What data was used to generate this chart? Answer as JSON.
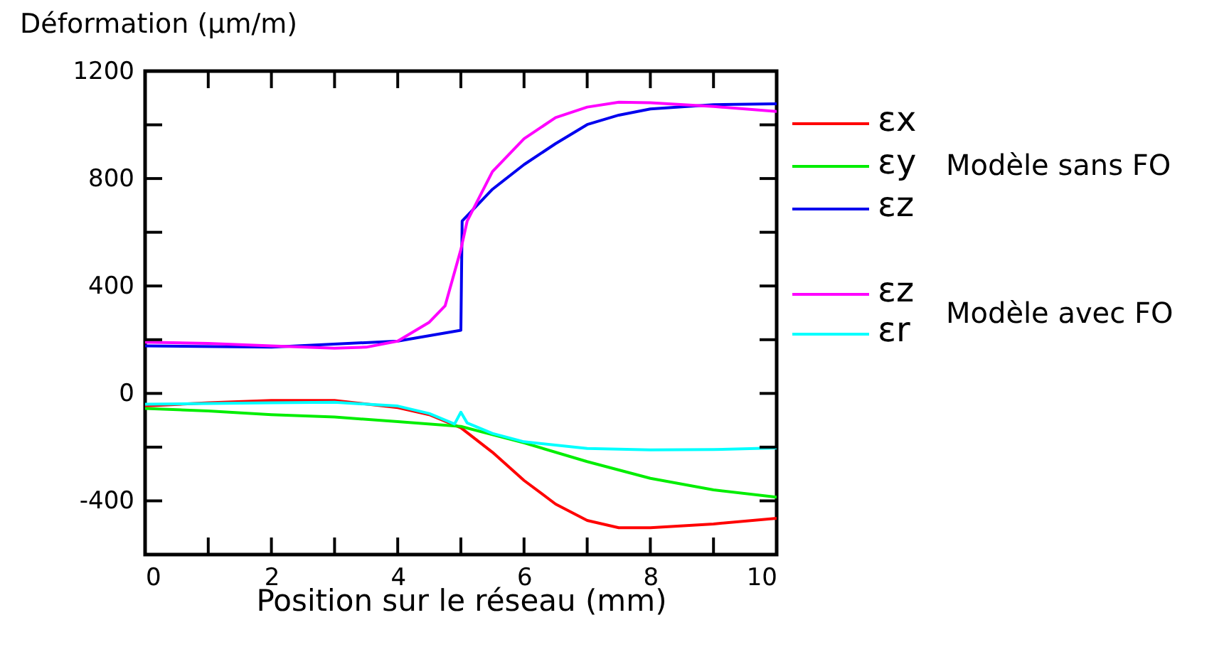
{
  "chart_data": {
    "type": "line",
    "xlabel": "Position sur le réseau (mm)",
    "ylabel": "Déformation (µm/m)",
    "xlim": [
      0,
      10
    ],
    "ylim": [
      -600,
      1200
    ],
    "xticks": [
      0,
      {
        "value": 1,
        "label": null
      },
      2,
      {
        "value": 3,
        "label": null
      },
      4,
      {
        "value": 5,
        "label": null
      },
      6,
      {
        "value": 7,
        "label": null
      },
      8,
      {
        "value": 9,
        "label": null
      },
      10
    ],
    "yticks": [
      {
        "value": -600,
        "label": null
      },
      -400,
      {
        "value": -200,
        "label": null
      },
      0,
      {
        "value": 200,
        "label": null
      },
      400,
      {
        "value": 600,
        "label": null
      },
      800,
      {
        "value": 1000,
        "label": null
      },
      1200
    ],
    "grid": false,
    "legend": "right",
    "line_style": "solid",
    "marker": "none",
    "annotations": [
      "Modèle sans FO",
      "Modèle avec FO"
    ],
    "series": [
      {
        "name": "εx",
        "color": "#ff0000",
        "x": [
          0,
          1,
          2,
          3,
          4,
          4.5,
          5,
          5.5,
          6,
          6.5,
          7,
          7.5,
          8,
          9,
          10
        ],
        "values": [
          -47,
          -35,
          -26,
          -26,
          -53,
          -79,
          -128,
          -219,
          -324,
          -412,
          -473,
          -500,
          -500,
          -486,
          -465
        ]
      },
      {
        "name": "εy",
        "color": "#00ee00",
        "x": [
          0,
          1,
          2,
          3,
          4,
          5,
          6,
          7,
          8,
          9,
          10
        ],
        "values": [
          -56,
          -65,
          -79,
          -88,
          -105,
          -123,
          -184,
          -254,
          -316,
          -359,
          -386
        ]
      },
      {
        "name": "εz",
        "color": "#0000ee",
        "x": [
          0,
          2,
          4,
          5,
          5.02,
          5.5,
          6,
          6.5,
          7,
          7.5,
          8,
          9,
          10
        ],
        "values": [
          177,
          172,
          195,
          235,
          642,
          760,
          852,
          930,
          1001,
          1036,
          1059,
          1075,
          1078
        ]
      },
      {
        "name": "εz",
        "color": "#ff00ff",
        "x": [
          0,
          1,
          2,
          3,
          3.5,
          4,
          4.5,
          4.75,
          5,
          5.1,
          5.5,
          6,
          6.5,
          7,
          7.5,
          8,
          9,
          10
        ],
        "values": [
          191,
          186,
          177,
          168,
          172,
          195,
          265,
          326,
          536,
          642,
          826,
          948,
          1027,
          1066,
          1084,
          1082,
          1068,
          1050
        ]
      },
      {
        "name": "εr",
        "color": "#00ffff",
        "x": [
          0,
          2,
          3,
          4,
          4.5,
          4.9,
          5,
          5.1,
          5.5,
          6,
          7,
          8,
          9,
          10
        ],
        "values": [
          -40,
          -35,
          -33,
          -47,
          -75,
          -114,
          -70,
          -110,
          -149,
          -180,
          -205,
          -210,
          -209,
          -203
        ]
      }
    ]
  }
}
